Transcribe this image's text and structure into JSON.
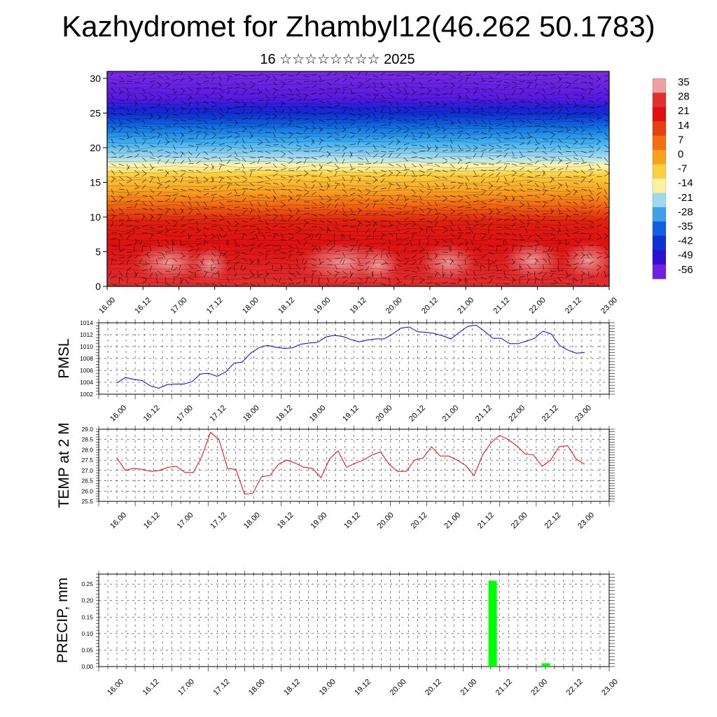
{
  "title": "Kazhydromet for Zhambyl12(46.262 50.1783)",
  "subtitle": "16 ☆☆☆☆☆☆☆☆ 2025",
  "chart_data": [
    {
      "type": "heatmap",
      "description": "Vertical cross-section of temperature with wind barbs",
      "x_ticks": [
        "16.00",
        "16.12",
        "17.00",
        "17.12",
        "18.00",
        "18.12",
        "19.00",
        "19.12",
        "20.00",
        "20.12",
        "21.00",
        "21.12",
        "22.00",
        "22.12",
        "23.00"
      ],
      "y_ticks": [
        0,
        5,
        10,
        15,
        20,
        25,
        30
      ],
      "ylim": [
        0,
        31
      ],
      "colorbar_labels": [
        "35",
        "28",
        "21",
        "14",
        "7",
        "0",
        "-7",
        "-14",
        "-21",
        "-28",
        "-35",
        "-42",
        "-49",
        "-56"
      ],
      "colorbar_colors": [
        "#f0a0a0",
        "#e03030",
        "#e01010",
        "#e84010",
        "#f07010",
        "#f8a020",
        "#fcd040",
        "#fff0a0",
        "#a0d8f0",
        "#40a0e8",
        "#1060e0",
        "#1030d0",
        "#3010d0",
        "#7020e0"
      ]
    },
    {
      "type": "line",
      "ylabel": "PMSL",
      "ylim": [
        1002,
        1014
      ],
      "y_ticks": [
        1002,
        1004,
        1006,
        1008,
        1010,
        1012,
        1014
      ],
      "x_ticks": [
        "16.00",
        "16.12",
        "17.00",
        "17.12",
        "18.00",
        "18.12",
        "19.00",
        "19.12",
        "20.00",
        "20.12",
        "21.00",
        "21.12",
        "22.00",
        "22.12",
        "23.00"
      ],
      "series": [
        {
          "color": "#0000ff",
          "values": [
            1003.9,
            1004.8,
            1004.5,
            1004.3,
            1003.4,
            1003.0,
            1003.6,
            1003.7,
            1003.7,
            1004.1,
            1005.4,
            1005.5,
            1005.0,
            1005.7,
            1007.2,
            1007.4,
            1008.9,
            1009.8,
            1010.2,
            1009.9,
            1009.7,
            1009.8,
            1010.4,
            1010.6,
            1010.7,
            1011.6,
            1011.9,
            1011.7,
            1011.2,
            1010.8,
            1011.1,
            1011.3,
            1011.3,
            1012.1,
            1013.1,
            1013.3,
            1012.5,
            1012.4,
            1012.2,
            1011.8,
            1011.3,
            1012.4,
            1013.4,
            1013.6,
            1012.6,
            1011.4,
            1011.4,
            1010.5,
            1010.5,
            1010.9,
            1011.4,
            1012.6,
            1012.1,
            1010.2,
            1009.4,
            1008.9,
            1009.0
          ]
        }
      ]
    },
    {
      "type": "line",
      "ylabel": "TEMP at 2 M",
      "ylim": [
        25.5,
        29.0
      ],
      "y_ticks": [
        "25.5",
        "26.0",
        "26.5",
        "27.0",
        "27.5",
        "28.0",
        "28.5",
        "29.0"
      ],
      "x_ticks": [
        "16.00",
        "16.12",
        "17.00",
        "17.12",
        "18.00",
        "18.12",
        "19.00",
        "19.12",
        "20.00",
        "20.12",
        "21.00",
        "21.12",
        "22.00",
        "22.12",
        "23.00"
      ],
      "series": [
        {
          "color": "#ff0000",
          "values": [
            27.6,
            27.0,
            27.1,
            27.05,
            26.95,
            27.0,
            27.15,
            27.2,
            26.9,
            26.9,
            27.7,
            28.85,
            28.5,
            27.1,
            27.05,
            25.85,
            25.9,
            26.7,
            26.75,
            27.3,
            27.5,
            27.35,
            27.15,
            27.1,
            26.65,
            27.55,
            27.95,
            27.15,
            27.35,
            27.5,
            27.75,
            27.9,
            27.3,
            26.95,
            26.95,
            27.5,
            27.6,
            28.15,
            27.7,
            27.7,
            27.5,
            27.25,
            26.75,
            27.75,
            28.35,
            28.7,
            28.5,
            28.2,
            27.8,
            27.75,
            27.2,
            27.5,
            28.15,
            28.2,
            27.55,
            27.3
          ]
        }
      ]
    },
    {
      "type": "bar",
      "ylabel": "PRECIP, mm",
      "ylim": [
        0,
        0.28
      ],
      "y_ticks": [
        "0.00",
        "0.05",
        "0.10",
        "0.15",
        "0.20",
        "0.25"
      ],
      "x_ticks": [
        "16.00",
        "16.12",
        "17.00",
        "17.12",
        "18.00",
        "18.12",
        "19.00",
        "19.12",
        "20.00",
        "20.12",
        "21.00",
        "21.12",
        "22.00",
        "22.12",
        "23.00"
      ],
      "bar_color": "#00ff00",
      "bars": [
        {
          "x_hours": 129,
          "value": 0.26
        },
        {
          "x_hours": 147,
          "value": 0.01
        }
      ]
    }
  ]
}
